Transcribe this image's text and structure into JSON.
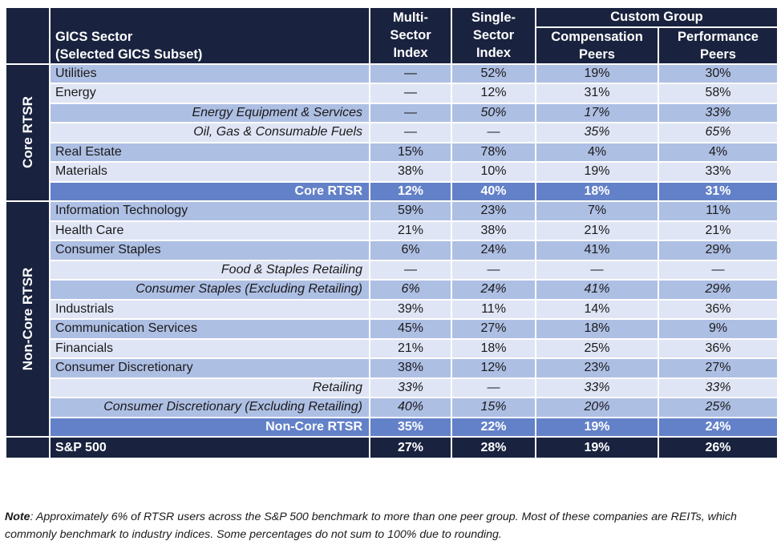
{
  "header": {
    "sector_title": "GICS Sector",
    "sector_subtitle": "(Selected GICS Subset)",
    "multi_sector": [
      "Multi-",
      "Sector",
      "Index"
    ],
    "single_sector": [
      "Single-",
      "Sector",
      "Index"
    ],
    "custom_group": "Custom Group",
    "compensation": [
      "Compensation",
      "Peers"
    ],
    "performance": [
      "Performance",
      "Peers"
    ]
  },
  "groups": {
    "core": "Core RTSR",
    "noncore": "Non-Core RTSR"
  },
  "core_rows": [
    {
      "label": "Utilities",
      "multi": "—",
      "single": "52%",
      "comp": "19%",
      "perf": "30%"
    },
    {
      "label": "Energy",
      "multi": "—",
      "single": "12%",
      "comp": "31%",
      "perf": "58%"
    },
    {
      "label": "Energy Equipment & Services",
      "multi": "—",
      "single": "50%",
      "comp": "17%",
      "perf": "33%"
    },
    {
      "label": "Oil, Gas & Consumable Fuels",
      "multi": "—",
      "single": "—",
      "comp": "35%",
      "perf": "65%"
    },
    {
      "label": "Real Estate",
      "multi": "15%",
      "single": "78%",
      "comp": "4%",
      "perf": "4%"
    },
    {
      "label": "Materials",
      "multi": "38%",
      "single": "10%",
      "comp": "19%",
      "perf": "33%"
    }
  ],
  "core_total": {
    "label": "Core RTSR",
    "multi": "12%",
    "single": "40%",
    "comp": "18%",
    "perf": "31%"
  },
  "noncore_rows": [
    {
      "label": "Information Technology",
      "multi": "59%",
      "single": "23%",
      "comp": "7%",
      "perf": "11%"
    },
    {
      "label": "Health Care",
      "multi": "21%",
      "single": "38%",
      "comp": "21%",
      "perf": "21%"
    },
    {
      "label": "Consumer Staples",
      "multi": "6%",
      "single": "24%",
      "comp": "41%",
      "perf": "29%"
    },
    {
      "label": "Food & Staples Retailing",
      "multi": "—",
      "single": "—",
      "comp": "—",
      "perf": "—"
    },
    {
      "label": "Consumer Staples (Excluding Retailing)",
      "multi": "6%",
      "single": "24%",
      "comp": "41%",
      "perf": "29%"
    },
    {
      "label": "Industrials",
      "multi": "39%",
      "single": "11%",
      "comp": "14%",
      "perf": "36%"
    },
    {
      "label": "Communication Services",
      "multi": "45%",
      "single": "27%",
      "comp": "18%",
      "perf": "9%"
    },
    {
      "label": "Financials",
      "multi": "21%",
      "single": "18%",
      "comp": "25%",
      "perf": "36%"
    },
    {
      "label": "Consumer Discretionary",
      "multi": "38%",
      "single": "12%",
      "comp": "23%",
      "perf": "27%"
    },
    {
      "label": "Retailing",
      "multi": "33%",
      "single": "—",
      "comp": "33%",
      "perf": "33%"
    },
    {
      "label": "Consumer Discretionary (Excluding Retailing)",
      "multi": "40%",
      "single": "15%",
      "comp": "20%",
      "perf": "25%"
    }
  ],
  "noncore_total": {
    "label": "Non-Core RTSR",
    "multi": "35%",
    "single": "22%",
    "comp": "19%",
    "perf": "24%"
  },
  "sp500": {
    "label": "S&P 500",
    "multi": "27%",
    "single": "28%",
    "comp": "19%",
    "perf": "26%"
  },
  "note": {
    "label": "Note",
    "text": ": Approximately 6% of RTSR users across the S&P 500 benchmark to more than one peer group. Most of these companies are REITs, which commonly benchmark to industry indices. Some percentages do not sum to 100% due to rounding."
  },
  "colors": {
    "header_navy": "#19233f",
    "row_dark": "#aebfe4",
    "row_light": "#dfe5f5",
    "total_blue": "#6381c8"
  }
}
